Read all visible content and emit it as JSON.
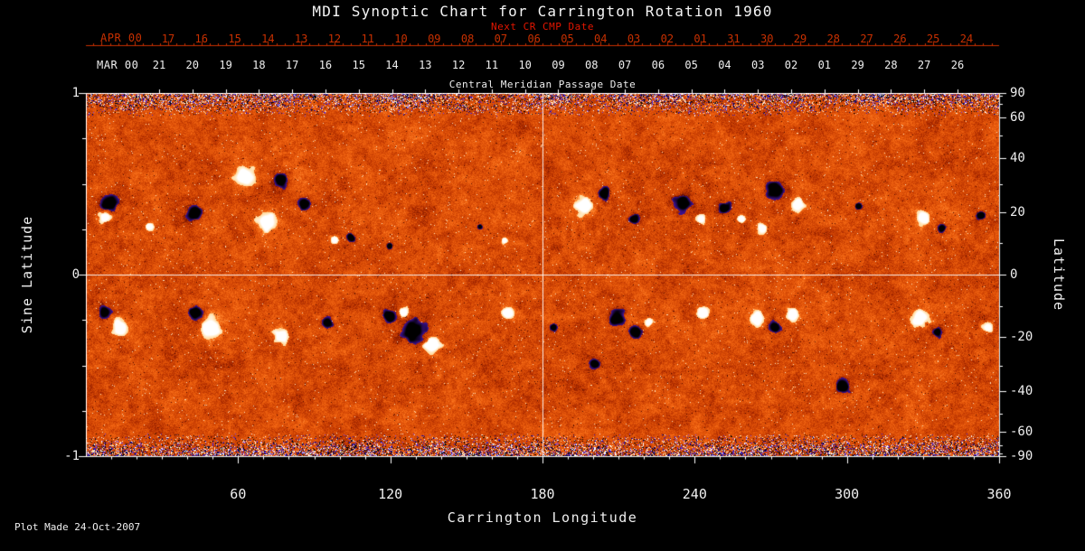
{
  "chart_data": {
    "type": "heatmap",
    "title": "MDI Synoptic Chart for Carrington Rotation 1960",
    "description": "Solar photospheric magnetic field synoptic magnetogram for Carrington rotation 1960. Orange mottled background is weak mixed-polarity field; white patches are strong positive-polarity active regions, black patches strong negative-polarity regions; noisy blue/purple speckle appears near the poles. White reference lines mark longitude 180 and sine latitude 0.",
    "footer": "Plot Made 24-Oct-2007",
    "axes": {
      "xlabel": "Carrington Longitude",
      "ylabel_left": "Sine Latitude",
      "ylabel_right": "Latitude",
      "xlim": [
        0,
        360
      ],
      "ylim_sine_latitude": [
        -1,
        1
      ],
      "x_ticks": [
        60,
        120,
        180,
        240,
        300,
        360
      ],
      "left_ticks": [
        1,
        0,
        -1
      ],
      "right_ticks": [
        90,
        60,
        40,
        20,
        0,
        -20,
        -40,
        -60,
        -90
      ],
      "reference_lines": {
        "longitude": 180,
        "sine_latitude": 0
      }
    },
    "top_axis_next_cr": {
      "month_label": "APR 00",
      "axis_label": "Next CR CMP Date",
      "tick_labels": [
        "17",
        "16",
        "15",
        "14",
        "13",
        "12",
        "11",
        "10",
        "09",
        "08",
        "07",
        "06",
        "05",
        "04",
        "03",
        "02",
        "01",
        "31",
        "30",
        "29",
        "28",
        "27",
        "26",
        "25",
        "24"
      ],
      "color": "#c83000"
    },
    "top_axis_cmp": {
      "month_label": "MAR 00",
      "axis_label": "Central Meridian Passage Date",
      "tick_labels": [
        "21",
        "20",
        "19",
        "18",
        "17",
        "16",
        "15",
        "14",
        "13",
        "12",
        "11",
        "10",
        "09",
        "08",
        "07",
        "06",
        "05",
        "04",
        "03",
        "02",
        "01",
        "29",
        "28",
        "27",
        "26"
      ],
      "color": "#efefef"
    },
    "palette": {
      "background": "#000000",
      "base_stops": [
        "#6e1400",
        "#a82800",
        "#cc4103",
        "#e4560a",
        "#f76c17",
        "#ffa14d"
      ],
      "positive_core": "#ffffff",
      "positive_edge": "#ffd898",
      "negative_core": "#000000",
      "negative_edge": "#41129a",
      "polar_speckle": [
        "#000000",
        "#000000",
        "#0d0660",
        "#2d14c9",
        "#6a3df2",
        "#ffffff",
        "#ffffff",
        "#ffd9a0",
        "#d8480c"
      ],
      "grid": "#ffffff",
      "accent_red": "#c83000",
      "next_cr_red": "#e41600"
    },
    "active_regions_xfrac_yfrac_radius_polarity": [
      [
        0.025,
        0.303,
        10,
        -1
      ],
      [
        0.02,
        0.341,
        7,
        1
      ],
      [
        0.069,
        0.366,
        5,
        1
      ],
      [
        0.119,
        0.328,
        9,
        -1
      ],
      [
        0.173,
        0.229,
        13,
        1
      ],
      [
        0.213,
        0.241,
        8,
        -1
      ],
      [
        0.198,
        0.353,
        12,
        1
      ],
      [
        0.238,
        0.303,
        7,
        -1
      ],
      [
        0.272,
        0.403,
        5,
        1
      ],
      [
        0.29,
        0.396,
        5,
        -1
      ],
      [
        0.332,
        0.42,
        4,
        -1
      ],
      [
        0.431,
        0.366,
        3,
        -1
      ],
      [
        0.458,
        0.405,
        4,
        1
      ],
      [
        0.545,
        0.311,
        11,
        1
      ],
      [
        0.567,
        0.276,
        8,
        -1
      ],
      [
        0.599,
        0.346,
        6,
        -1
      ],
      [
        0.653,
        0.303,
        10,
        -1
      ],
      [
        0.673,
        0.346,
        6,
        1
      ],
      [
        0.698,
        0.316,
        8,
        -1
      ],
      [
        0.718,
        0.346,
        5,
        1
      ],
      [
        0.74,
        0.371,
        6,
        1
      ],
      [
        0.754,
        0.266,
        12,
        -1
      ],
      [
        0.779,
        0.306,
        8,
        1
      ],
      [
        0.846,
        0.311,
        4,
        -1
      ],
      [
        0.916,
        0.341,
        9,
        1
      ],
      [
        0.937,
        0.371,
        5,
        -1
      ],
      [
        0.98,
        0.336,
        5,
        -1
      ],
      [
        0.02,
        0.602,
        8,
        -1
      ],
      [
        0.037,
        0.644,
        10,
        1
      ],
      [
        0.119,
        0.607,
        8,
        -1
      ],
      [
        0.136,
        0.644,
        13,
        1
      ],
      [
        0.213,
        0.669,
        9,
        1
      ],
      [
        0.264,
        0.629,
        6,
        -1
      ],
      [
        0.332,
        0.614,
        8,
        -1
      ],
      [
        0.358,
        0.654,
        14,
        -1
      ],
      [
        0.379,
        0.694,
        10,
        1
      ],
      [
        0.347,
        0.602,
        6,
        1
      ],
      [
        0.462,
        0.607,
        8,
        1
      ],
      [
        0.512,
        0.644,
        5,
        -1
      ],
      [
        0.556,
        0.744,
        7,
        -1
      ],
      [
        0.581,
        0.619,
        10,
        -1
      ],
      [
        0.601,
        0.657,
        7,
        -1
      ],
      [
        0.616,
        0.629,
        5,
        1
      ],
      [
        0.675,
        0.607,
        7,
        1
      ],
      [
        0.734,
        0.619,
        9,
        1
      ],
      [
        0.754,
        0.644,
        7,
        -1
      ],
      [
        0.774,
        0.607,
        8,
        1
      ],
      [
        0.828,
        0.806,
        9,
        -1
      ],
      [
        0.913,
        0.619,
        10,
        1
      ],
      [
        0.932,
        0.657,
        6,
        -1
      ],
      [
        0.987,
        0.644,
        6,
        1
      ]
    ]
  }
}
